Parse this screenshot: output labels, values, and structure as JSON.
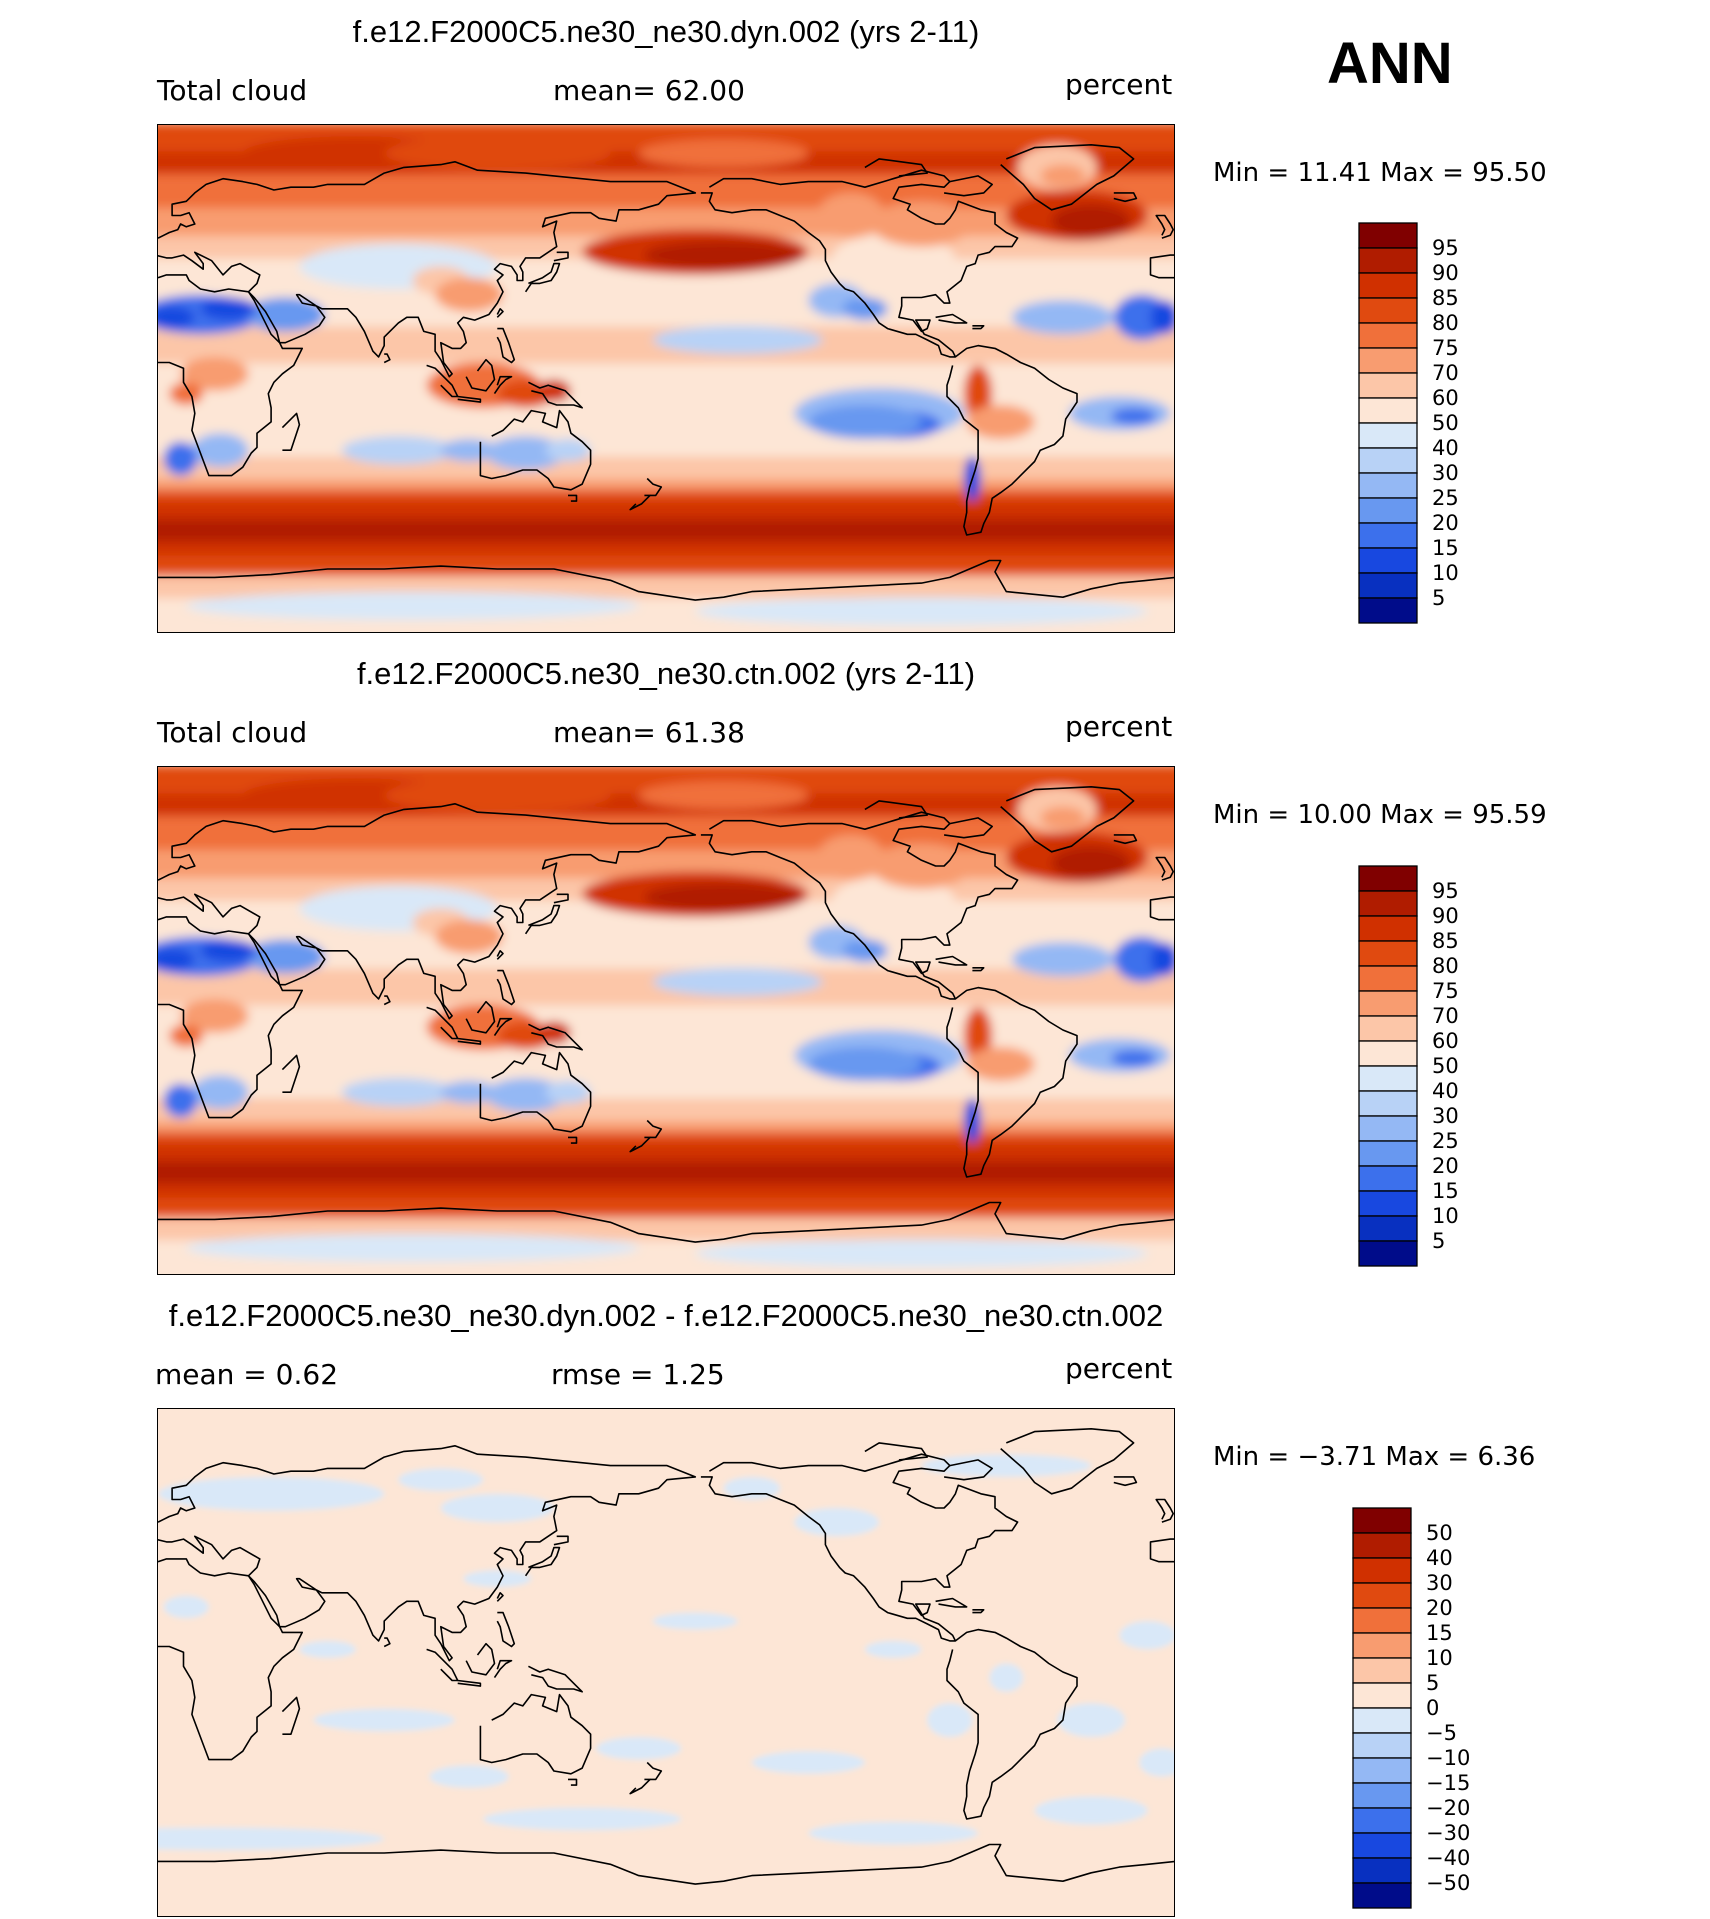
{
  "season": "ANN",
  "panels": [
    {
      "title": "f.e12.F2000C5.ne30_ne30.dyn.002 (yrs 2-11)",
      "left_label": "Total cloud",
      "center_label": "mean=   62.00",
      "units": "percent",
      "minmax": "Min =   11.41  Max =   95.50",
      "colorbar_labels": [
        "95",
        "90",
        "85",
        "80",
        "75",
        "70",
        "60",
        "50",
        "40",
        "30",
        "25",
        "20",
        "15",
        "10",
        "5"
      ]
    },
    {
      "title": "f.e12.F2000C5.ne30_ne30.ctn.002 (yrs 2-11)",
      "left_label": "Total cloud",
      "center_label": "mean=   61.38",
      "units": "percent",
      "minmax": "Min =   10.00  Max =   95.59",
      "colorbar_labels": [
        "95",
        "90",
        "85",
        "80",
        "75",
        "70",
        "60",
        "50",
        "40",
        "30",
        "25",
        "20",
        "15",
        "10",
        "5"
      ]
    },
    {
      "title": "f.e12.F2000C5.ne30_ne30.dyn.002 - f.e12.F2000C5.ne30_ne30.ctn.002",
      "left_label": "mean =    0.62",
      "center_label": "rmse =    1.25",
      "units": "percent",
      "minmax": "Min =  −3.71  Max =    6.36",
      "colorbar_labels": [
        "50",
        "40",
        "30",
        "20",
        "15",
        "10",
        "5",
        "0",
        "−5",
        "−10",
        "−15",
        "−20",
        "−30",
        "−40",
        "−50"
      ]
    }
  ],
  "colors": {
    "scale16": [
      "#800000",
      "#b01c00",
      "#d03000",
      "#e04a10",
      "#f0703a",
      "#f89c70",
      "#fcc6a8",
      "#fde6d6",
      "#d9e8f8",
      "#b8d2f6",
      "#94b8f4",
      "#6898f0",
      "#3c70ec",
      "#1848e0",
      "#0830c0",
      "#000c8a"
    ],
    "land_outline": "#000000"
  }
}
